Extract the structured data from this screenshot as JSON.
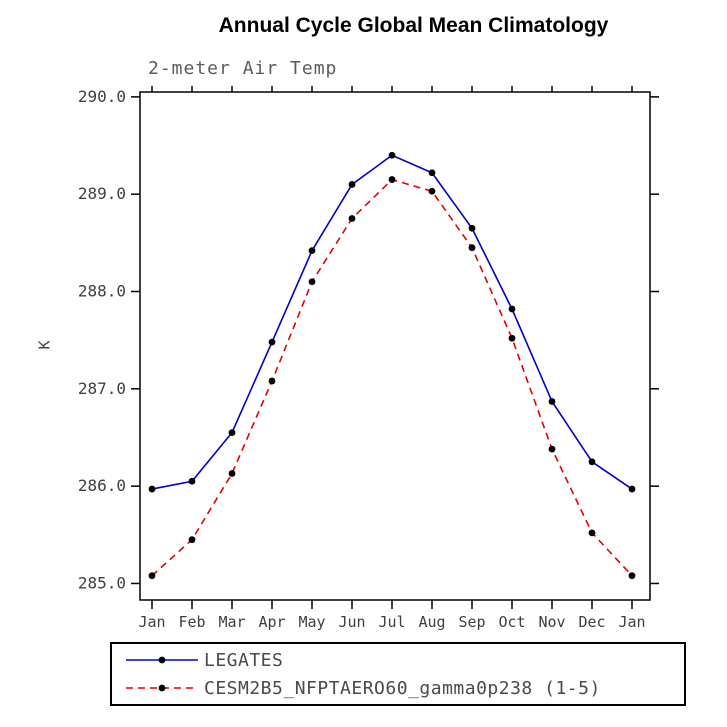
{
  "title": "Annual Cycle Global Mean Climatology",
  "subtitle": "2-meter Air Temp",
  "ylabel": "K",
  "chart_data": {
    "type": "line",
    "title": "Annual Cycle Global Mean Climatology",
    "subtitle": "2-meter Air Temp",
    "xlabel": "",
    "ylabel": "K",
    "categories": [
      "Jan",
      "Feb",
      "Mar",
      "Apr",
      "May",
      "Jun",
      "Jul",
      "Aug",
      "Sep",
      "Oct",
      "Nov",
      "Dec",
      "Jan"
    ],
    "series": [
      {
        "name": "LEGATES",
        "color": "#0000cd",
        "style": "solid",
        "values": [
          285.97,
          286.05,
          286.55,
          287.48,
          288.42,
          289.1,
          289.4,
          289.22,
          288.65,
          287.82,
          286.87,
          286.25,
          285.97
        ]
      },
      {
        "name": "CESM2B5_NFPTAERO60_gamma0p238 (1-5)",
        "color": "#e30000",
        "style": "dashed",
        "values": [
          285.08,
          285.45,
          286.13,
          287.08,
          288.1,
          288.75,
          289.15,
          289.03,
          288.45,
          287.52,
          286.38,
          285.52,
          285.08
        ]
      }
    ],
    "yticks": [
      285.0,
      286.0,
      287.0,
      288.0,
      289.0,
      290.0
    ],
    "ylim": [
      284.83,
      290.05
    ],
    "grid": false,
    "legend_position": "bottom",
    "marker": "filled-circle",
    "marker_color": "#000000",
    "frame_color": "#000000"
  }
}
